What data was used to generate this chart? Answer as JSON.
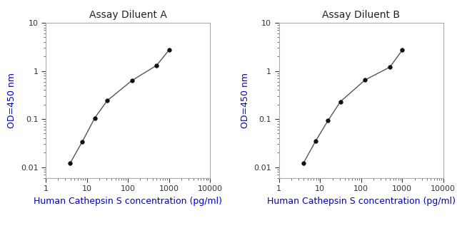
{
  "panel_A": {
    "title": "Assay Diluent A",
    "x": [
      3.9,
      7.8,
      15.6,
      31.25,
      125,
      500,
      1000
    ],
    "y": [
      0.012,
      0.034,
      0.105,
      0.24,
      0.63,
      1.3,
      2.7
    ]
  },
  "panel_B": {
    "title": "Assay Diluent B",
    "x": [
      3.9,
      7.8,
      15.6,
      31.25,
      125,
      500,
      1000
    ],
    "y": [
      0.012,
      0.035,
      0.093,
      0.23,
      0.65,
      1.2,
      2.7
    ]
  },
  "xlabel": "Human Cathepsin S concentration (pg/ml)",
  "ylabel": "OD=450 nm",
  "xlim": [
    1,
    10000
  ],
  "ylim": [
    0.006,
    10
  ],
  "line_color": "#555555",
  "marker_color": "#111111",
  "title_color": "#222222",
  "label_color": "#0000cc",
  "tick_color": "#333333",
  "spine_color": "#aaaaaa",
  "background_color": "#ffffff",
  "title_fontsize": 10,
  "label_fontsize": 9,
  "tick_fontsize": 8
}
